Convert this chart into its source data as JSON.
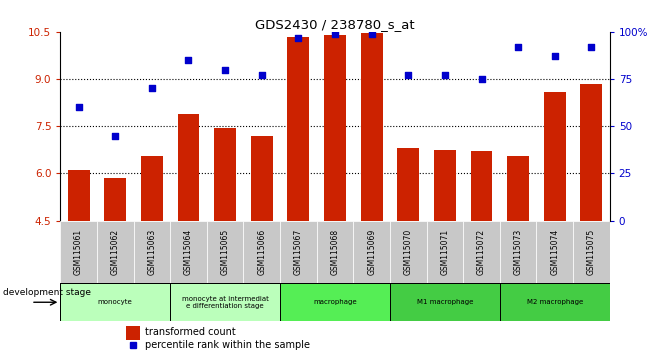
{
  "title": "GDS2430 / 238780_s_at",
  "samples": [
    "GSM115061",
    "GSM115062",
    "GSM115063",
    "GSM115064",
    "GSM115065",
    "GSM115066",
    "GSM115067",
    "GSM115068",
    "GSM115069",
    "GSM115070",
    "GSM115071",
    "GSM115072",
    "GSM115073",
    "GSM115074",
    "GSM115075"
  ],
  "bar_values": [
    6.1,
    5.85,
    6.55,
    7.9,
    7.45,
    7.2,
    10.35,
    10.4,
    10.45,
    6.8,
    6.75,
    6.7,
    6.55,
    8.6,
    8.85
  ],
  "scatter_values": [
    60,
    45,
    70,
    85,
    80,
    77,
    97,
    99,
    99,
    77,
    77,
    75,
    92,
    87,
    92
  ],
  "bar_color": "#cc2200",
  "scatter_color": "#0000cc",
  "ylim_left": [
    4.5,
    10.5
  ],
  "ylim_right": [
    0,
    100
  ],
  "yticks_left": [
    4.5,
    6.0,
    7.5,
    9.0,
    10.5
  ],
  "yticks_right": [
    0,
    25,
    50,
    75,
    100
  ],
  "ytick_labels_right": [
    "0",
    "25",
    "50",
    "75",
    "100%"
  ],
  "hlines": [
    6.0,
    7.5,
    9.0
  ],
  "dev_stage_label": "development stage",
  "legend_bar": "transformed count",
  "legend_scatter": "percentile rank within the sample",
  "stage_defs": [
    {
      "start": 0,
      "end": 2,
      "color": "#bbffbb",
      "label": "monocyte"
    },
    {
      "start": 3,
      "end": 5,
      "color": "#bbffbb",
      "label": "monocyte at intermediat\ne differentiation stage"
    },
    {
      "start": 6,
      "end": 8,
      "color": "#55ee55",
      "label": "macrophage"
    },
    {
      "start": 9,
      "end": 11,
      "color": "#44cc44",
      "label": "M1 macrophage"
    },
    {
      "start": 12,
      "end": 14,
      "color": "#44cc44",
      "label": "M2 macrophage"
    }
  ]
}
